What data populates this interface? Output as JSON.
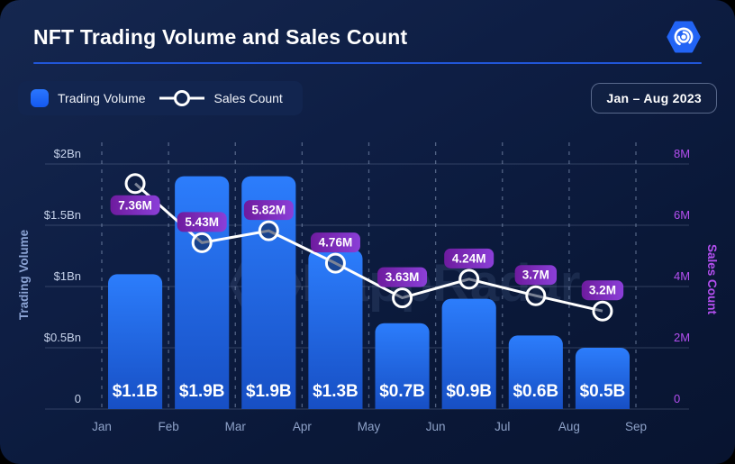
{
  "header": {
    "title": "NFT Trading Volume and Sales Count",
    "logo": "dappradar-logo"
  },
  "legend": {
    "volume_label": "Trading Volume",
    "sales_label": "Sales Count"
  },
  "period_badge": "Jan – Aug 2023",
  "watermark": "DappRadar",
  "colors": {
    "background": "#0E1D40",
    "divider": "#2156D8",
    "bar_top": "#2C7DFC",
    "bar_bottom": "#174FC4",
    "line": "#FFFFFF",
    "marker_fill": "#0E1D40",
    "badge_left": "#6E1B9E",
    "badge_right": "#8B3FD8",
    "left_axis_label": "#C6D2EA",
    "left_axis_title": "#8AA2D3",
    "right_axis": "#B44FF0",
    "month_label": "#8EA2C8",
    "grid_solid": "rgba(158,174,205,0.26)",
    "grid_dashed": "rgba(150,167,200,0.5)",
    "logo_blue": "#2264F5",
    "legend_bg": "#12254F"
  },
  "chart_data": {
    "type": "bar+line combo",
    "categories": [
      "Jan",
      "Feb",
      "Mar",
      "Apr",
      "May",
      "Jun",
      "Jul",
      "Aug"
    ],
    "x_ticks": [
      "Jan",
      "Feb",
      "Mar",
      "Apr",
      "May",
      "Jun",
      "Jul",
      "Aug",
      "Sep"
    ],
    "series": [
      {
        "name": "Trading Volume",
        "type": "bar",
        "unit": "$Bn",
        "values": [
          1.1,
          1.9,
          1.9,
          1.3,
          0.7,
          0.9,
          0.6,
          0.5
        ],
        "labels": [
          "$1.1B",
          "$1.9B",
          "$1.9B",
          "$1.3B",
          "$0.7B",
          "$0.9B",
          "$0.6B",
          "$0.5B"
        ]
      },
      {
        "name": "Sales Count",
        "type": "line",
        "unit": "M",
        "values": [
          7.36,
          5.43,
          5.82,
          4.76,
          3.63,
          4.24,
          3.7,
          3.2
        ],
        "labels": [
          "7.36M",
          "5.43M",
          "5.82M",
          "4.76M",
          "3.63M",
          "4.24M",
          "3.7M",
          "3.2M"
        ],
        "label_placement": [
          "below",
          "above",
          "above",
          "above",
          "above",
          "above",
          "above",
          "above"
        ]
      }
    ],
    "left_axis": {
      "title": "Trading Volume",
      "ticks": [
        "$2Bn",
        "$1.5Bn",
        "$1Bn",
        "$0.5Bn",
        "0"
      ],
      "tick_values": [
        2,
        1.5,
        1,
        0.5,
        0
      ],
      "range": [
        0,
        2
      ]
    },
    "right_axis": {
      "title": "Sales Count",
      "ticks": [
        "8M",
        "6M",
        "4M",
        "2M",
        "0"
      ],
      "tick_values": [
        8,
        6,
        4,
        2,
        0
      ],
      "range": [
        0,
        8
      ]
    },
    "grid": {
      "horizontal": "solid",
      "vertical": "dashed"
    },
    "legend_position": "top-left"
  }
}
